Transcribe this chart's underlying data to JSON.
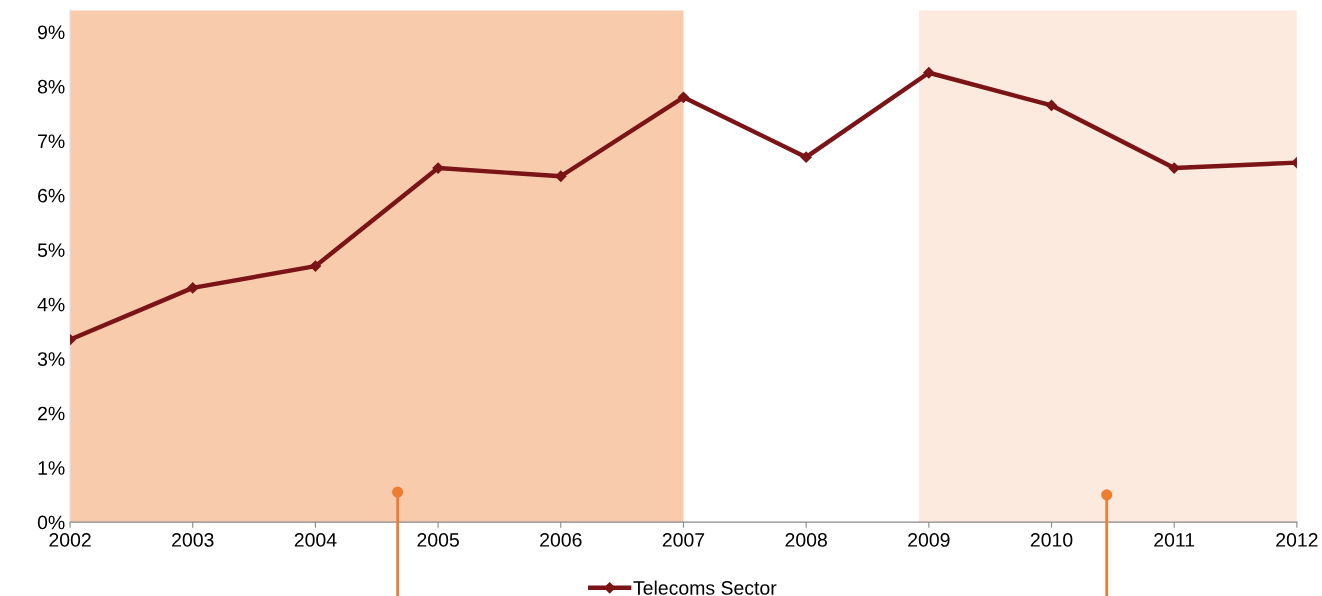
{
  "chart_data": {
    "type": "line",
    "x": [
      2002,
      2003,
      2004,
      2005,
      2006,
      2007,
      2008,
      2009,
      2010,
      2011,
      2012
    ],
    "series": [
      {
        "name": "Telecoms Sector",
        "color": "#7b1416",
        "values": [
          3.35,
          4.3,
          4.7,
          6.5,
          6.35,
          7.8,
          6.7,
          8.25,
          7.65,
          6.5,
          6.6
        ]
      }
    ],
    "xlim": [
      2002,
      2012
    ],
    "xticks": [
      2002,
      2003,
      2004,
      2005,
      2006,
      2007,
      2008,
      2009,
      2010,
      2011,
      2012
    ],
    "ylim": [
      0,
      9.4
    ],
    "yticks": [
      {
        "value": 0,
        "label": "0%"
      },
      {
        "value": 1,
        "label": "1%"
      },
      {
        "value": 2,
        "label": "2%"
      },
      {
        "value": 3,
        "label": "3%"
      },
      {
        "value": 4,
        "label": "4%"
      },
      {
        "value": 5,
        "label": "5%"
      },
      {
        "value": 6,
        "label": "6%"
      },
      {
        "value": 7,
        "label": "7%"
      },
      {
        "value": 8,
        "label": "8%"
      },
      {
        "value": 9,
        "label": "9%"
      }
    ],
    "bands": [
      {
        "axis": "x",
        "from": 2002,
        "to": 2007,
        "color": "#f8cbad"
      },
      {
        "axis": "x",
        "from": 2008.92,
        "to": 2012,
        "color": "#fdeadf"
      }
    ],
    "marker": "diamond",
    "line_style": "solid",
    "grid": false,
    "legend": "bottom"
  }
}
